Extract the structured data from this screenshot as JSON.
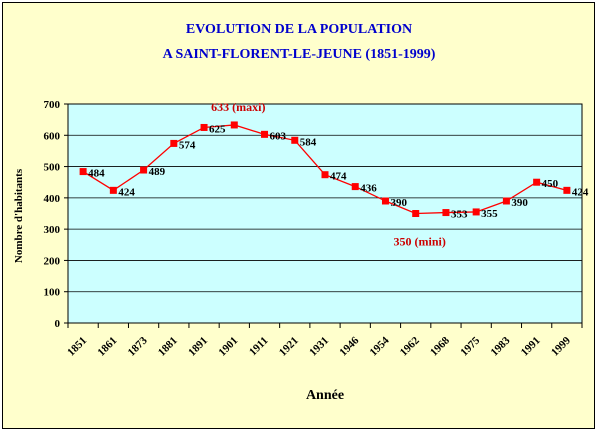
{
  "colors": {
    "frame_bg": "#ffffcc",
    "plot_bg": "#ccffff",
    "title": "#0000cc",
    "series": "#ff0000",
    "annotation": "#cc0000"
  },
  "chart_data": {
    "type": "line",
    "title": "EVOLUTION DE LA POPULATION",
    "subtitle": "A SAINT-FLORENT-LE-JEUNE  (1851-1999)",
    "xlabel": "Année",
    "ylabel": "Nombre d'habitants",
    "ylim": [
      0,
      700
    ],
    "yticks": [
      0,
      100,
      200,
      300,
      400,
      500,
      600,
      700
    ],
    "grid": true,
    "legend": "none",
    "categories": [
      "1851",
      "1861",
      "1873",
      "1881",
      "1891",
      "1901",
      "1911",
      "1921",
      "1931",
      "1946",
      "1954",
      "1962",
      "1968",
      "1975",
      "1983",
      "1991",
      "1999"
    ],
    "series": [
      {
        "values": [
          484,
          424,
          489,
          574,
          625,
          633,
          603,
          584,
          474,
          436,
          390,
          350,
          353,
          355,
          390,
          450,
          424
        ],
        "labels": [
          "484",
          "424",
          "489",
          "574",
          "625",
          "",
          "603",
          "584",
          "474",
          "436",
          "390",
          "",
          "353",
          "355",
          "390",
          "450",
          "424"
        ]
      }
    ],
    "annotations": [
      {
        "text": "633 (maxi)",
        "category": "1901",
        "value": 633
      },
      {
        "text": "350 (mini)",
        "category": "1962",
        "value": 350
      }
    ]
  }
}
